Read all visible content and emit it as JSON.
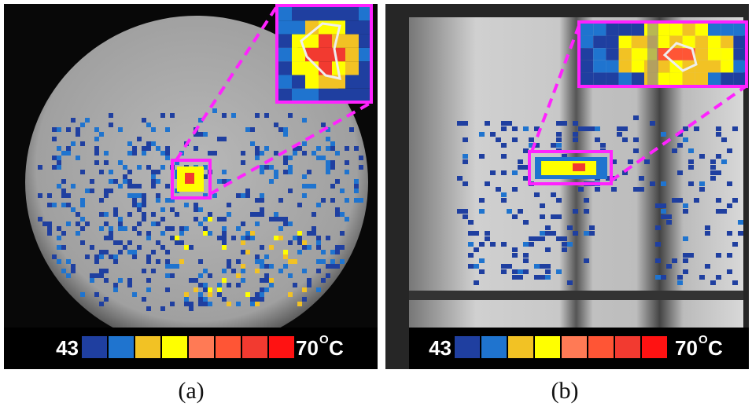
{
  "panels": [
    {
      "caption": "(a)",
      "colorbar": {
        "min_label": "43",
        "max_label": "70",
        "degree": "O",
        "unit": "C",
        "colors": [
          "#1f3fa0",
          "#1f74cf",
          "#f2c224",
          "#ffff00",
          "#ff7a55",
          "#ff5535",
          "#f23a30",
          "#ff1212"
        ]
      }
    },
    {
      "caption": "(b)",
      "colorbar": {
        "min_label": "43",
        "max_label": "70",
        "degree": "O",
        "unit": "C",
        "colors": [
          "#1f3fa0",
          "#1f74cf",
          "#f2c224",
          "#ffff00",
          "#ff7a55",
          "#ff5535",
          "#f23a30",
          "#ff1212"
        ]
      }
    }
  ]
}
